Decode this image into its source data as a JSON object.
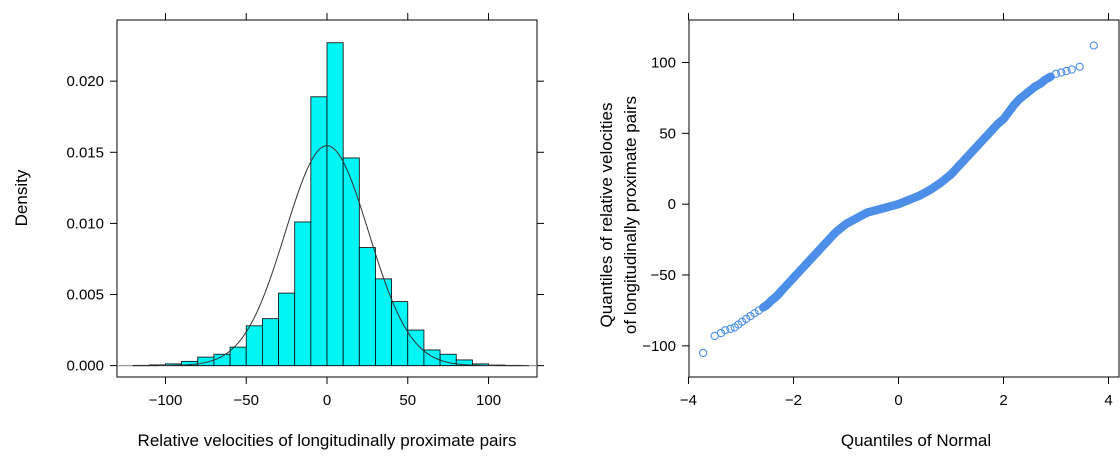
{
  "chart_data": [
    {
      "type": "bar",
      "subtype": "histogram-with-density-curve",
      "xlabel": "Relative velocities of longitudinally proximate pairs",
      "ylabel": "Density",
      "xlim": [
        -130,
        130
      ],
      "ylim": [
        -0.0008,
        0.0243
      ],
      "xticks": [
        -100,
        -50,
        0,
        50,
        100
      ],
      "xtick_labels": [
        "−100",
        "−50",
        "0",
        "50",
        "100"
      ],
      "yticks": [
        0.0,
        0.005,
        0.01,
        0.015,
        0.02
      ],
      "ytick_labels": [
        "0.000",
        "0.005",
        "0.010",
        "0.015",
        "0.020"
      ],
      "bin_edges": [
        -120,
        -110,
        -100,
        -90,
        -80,
        -70,
        -60,
        -50,
        -40,
        -30,
        -20,
        -10,
        0,
        10,
        20,
        30,
        40,
        50,
        60,
        70,
        80,
        90,
        100,
        110,
        120
      ],
      "values": [
        2e-05,
        5e-05,
        0.00012,
        0.0003,
        0.0006,
        0.0008,
        0.0013,
        0.0028,
        0.0033,
        0.0051,
        0.0101,
        0.0189,
        0.0227,
        0.0146,
        0.0083,
        0.0061,
        0.0045,
        0.0025,
        0.0011,
        0.0008,
        0.0004,
        0.00012,
        4e-05,
        2e-05
      ],
      "density_curve": {
        "type": "normal",
        "mean": 0,
        "sd": 25.8,
        "range": [
          -120,
          125
        ]
      },
      "colors": {
        "bar_fill": "#00f5f5",
        "bar_stroke": "#000000",
        "curve": "#333333",
        "baseline": "#9a9a9a"
      },
      "grid": false
    },
    {
      "type": "scatter",
      "subtype": "normal-qq-plot",
      "xlabel": "Quantiles of Normal",
      "ylabel_lines": [
        "Quantiles of relative velocities",
        "of longitudinally proximate pairs"
      ],
      "xlim": [
        -3.99,
        4.2
      ],
      "ylim": [
        -122,
        130
      ],
      "xticks": [
        -4,
        -2,
        0,
        2,
        4
      ],
      "xtick_labels": [
        "−4",
        "−2",
        "0",
        "2",
        "4"
      ],
      "yticks": [
        -100,
        -50,
        0,
        50,
        100
      ],
      "ytick_labels": [
        "−100",
        "−50",
        "0",
        "50",
        "100"
      ],
      "points_x": [
        -3.72,
        -3.5,
        -3.38,
        -3.3,
        -3.2,
        -3.12,
        -3.05,
        -2.98,
        -2.9,
        -2.82,
        -2.74,
        -2.66,
        -2.58,
        -2.5,
        -2.42,
        -2.35,
        -2.27,
        -2.2,
        -2.1,
        -2.0,
        -1.9,
        -1.8,
        -1.7,
        -1.6,
        -1.5,
        -1.4,
        -1.3,
        -1.2,
        -1.1,
        -1.0,
        -0.9,
        -0.8,
        -0.7,
        -0.6,
        -0.5,
        -0.4,
        -0.3,
        -0.2,
        -0.1,
        0.0,
        0.1,
        0.2,
        0.3,
        0.4,
        0.5,
        0.6,
        0.7,
        0.8,
        0.9,
        1.0,
        1.1,
        1.2,
        1.3,
        1.4,
        1.5,
        1.6,
        1.7,
        1.8,
        1.9,
        2.0,
        2.1,
        2.2,
        2.3,
        2.4,
        2.5,
        2.6,
        2.7,
        2.8,
        2.9,
        3.0,
        3.1,
        3.2,
        3.3,
        3.45,
        3.72
      ],
      "points_y": [
        -105,
        -93,
        -91,
        -89,
        -88,
        -87,
        -85,
        -83,
        -81,
        -79,
        -77,
        -75,
        -73,
        -71,
        -68,
        -66,
        -63,
        -60,
        -56,
        -52,
        -48,
        -44,
        -40,
        -36,
        -32,
        -28,
        -24,
        -20,
        -17,
        -14,
        -12,
        -10,
        -8,
        -6,
        -5,
        -4,
        -3,
        -2,
        -1,
        0,
        1.5,
        3,
        4.5,
        6,
        8,
        10,
        12.5,
        15,
        18,
        21,
        25,
        29,
        33,
        37,
        41,
        45,
        49,
        53,
        57,
        60,
        65,
        70,
        74,
        77,
        80,
        83,
        85,
        88,
        90,
        92,
        93,
        94,
        95,
        97,
        112
      ],
      "colors": {
        "point": "#4d8fe8"
      },
      "grid": false
    }
  ]
}
